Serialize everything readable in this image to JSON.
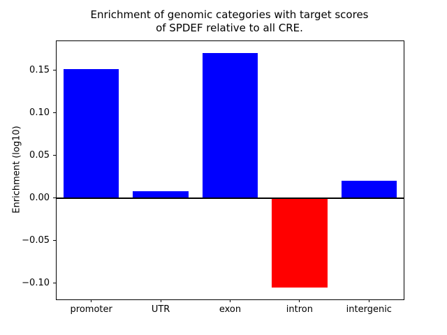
{
  "chart_data": {
    "type": "bar",
    "title": "Enrichment of genomic categories with target scores\nof SPDEF relative to all CRE.",
    "xlabel": "",
    "ylabel": "Enrichment (log10)",
    "categories": [
      "promoter",
      "UTR",
      "exon",
      "intron",
      "intergenic"
    ],
    "values": [
      0.151,
      0.008,
      0.17,
      -0.105,
      0.02
    ],
    "colors": [
      "#0000ff",
      "#0000ff",
      "#0000ff",
      "#ff0000",
      "#0000ff"
    ],
    "positive_color": "#0000ff",
    "negative_color": "#ff0000",
    "ylim": [
      -0.119,
      0.184
    ],
    "yticks": [
      -0.1,
      -0.05,
      0.0,
      0.05,
      0.1,
      0.15
    ],
    "yticklabels": [
      "−0.10",
      "−0.05",
      "0.00",
      "0.05",
      "0.10",
      "0.15"
    ],
    "bar_width_fraction": 0.8,
    "grid": false,
    "legend": "none",
    "zero_line": true
  }
}
